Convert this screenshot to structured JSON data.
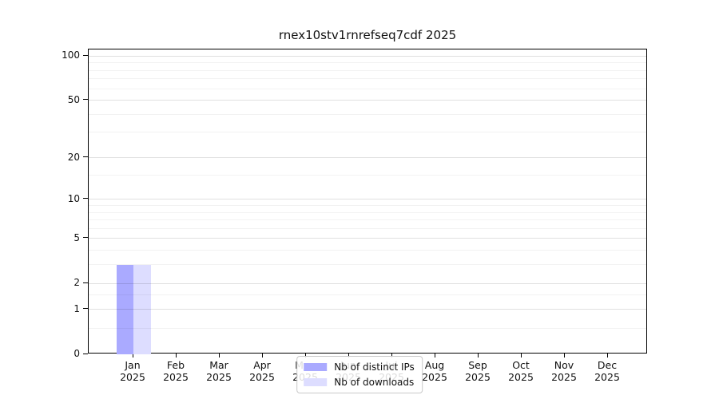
{
  "page": {
    "background": "#ffffff"
  },
  "chart_data": {
    "type": "bar",
    "title": "rnex10stv1rnrefseq7cdf 2025",
    "x_axis": {
      "categories": [
        "Jan",
        "Feb",
        "Mar",
        "Apr",
        "May",
        "Jun",
        "Jul",
        "Aug",
        "Sep",
        "Oct",
        "Nov",
        "Dec"
      ],
      "year_label": "2025"
    },
    "y_axis": {
      "scale": "log10(1+y)",
      "tick_values": [
        0,
        1,
        2,
        5,
        10,
        20,
        50,
        100
      ],
      "minor_gridline_values": [
        0.5,
        1.5,
        3,
        4,
        6,
        7,
        8,
        9,
        15,
        30,
        40,
        60,
        70,
        80,
        90
      ],
      "range": [
        0,
        111
      ],
      "grid": "horizontal"
    },
    "series": [
      {
        "name": "Nb of distinct IPs",
        "color": "#aaaaff",
        "values": [
          3,
          0,
          0,
          0,
          0,
          0,
          0,
          0,
          0,
          0,
          0,
          0
        ]
      },
      {
        "name": "Nb of downloads",
        "color": "#ddddff",
        "values": [
          3,
          0,
          0,
          0,
          0,
          0,
          0,
          0,
          0,
          0,
          0,
          0
        ]
      }
    ],
    "legend": {
      "position": "lower-center-inside",
      "entries": [
        {
          "label": "Nb of distinct IPs",
          "color": "#aaaaff"
        },
        {
          "label": "Nb of downloads",
          "color": "#ddddff"
        }
      ]
    }
  },
  "colors": {
    "axis": "#000000",
    "grid_major": "rgba(0,0,0,0.12)",
    "grid_minor": "rgba(0,0,0,0.05)",
    "legend_border": "#c9c9c9",
    "text": "#111111"
  }
}
